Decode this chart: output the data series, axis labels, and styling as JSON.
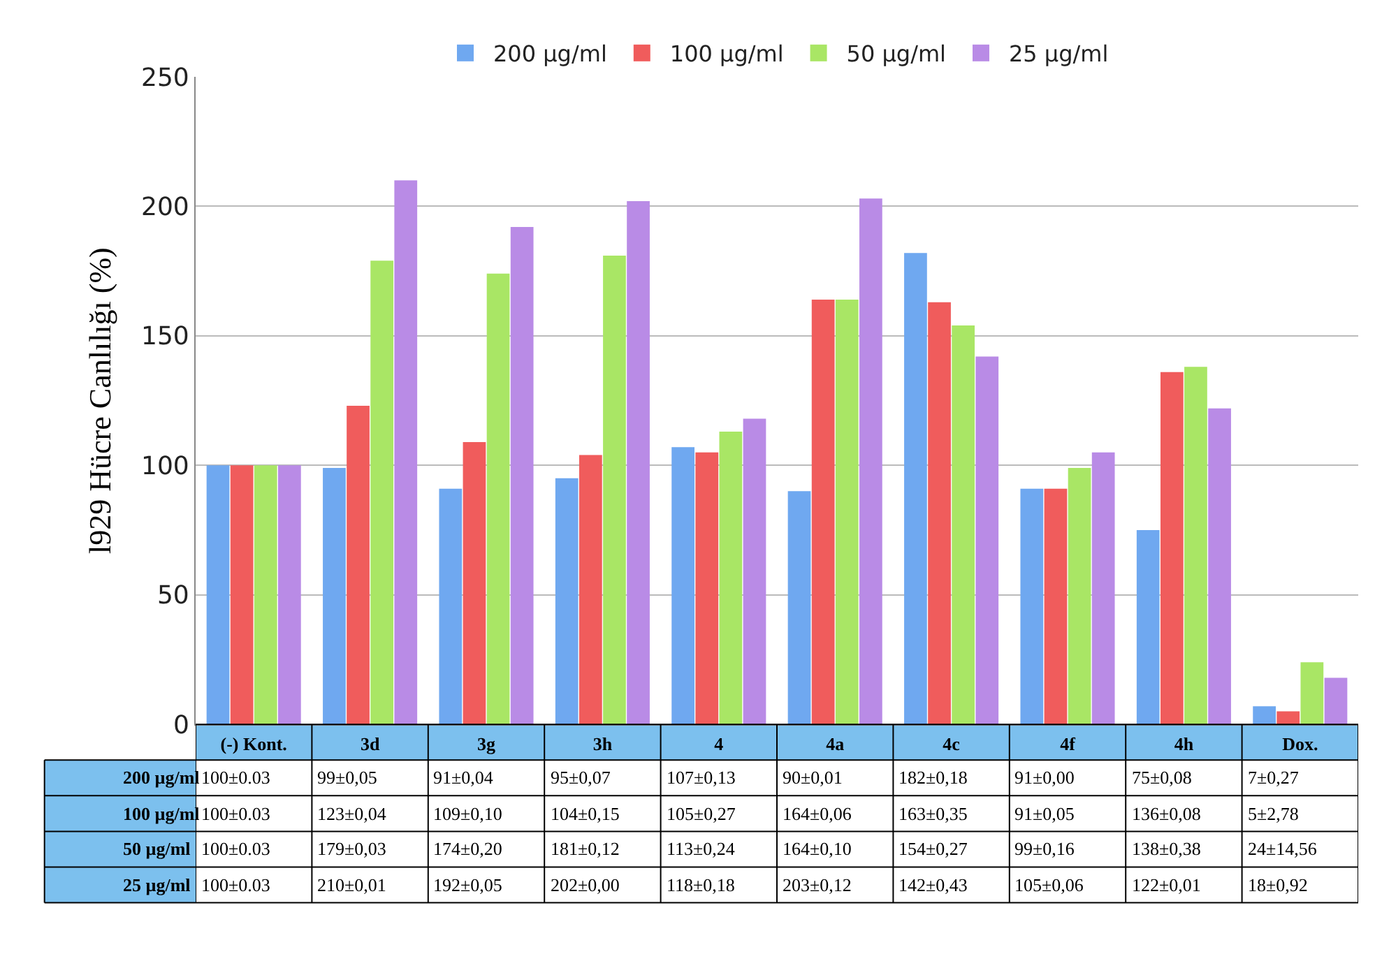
{
  "chart_data": {
    "type": "bar",
    "ylabel": "l929 Hücre Canlılığı (%)",
    "categories": [
      "(-) Kont.",
      "3d",
      "3g",
      "3h",
      "4",
      "4a",
      "4c",
      "4f",
      "4h",
      "Dox."
    ],
    "series": [
      {
        "name": "200 µg/ml",
        "color": "#6fa8f0",
        "values": [
          100,
          99,
          91,
          95,
          107,
          90,
          182,
          91,
          75,
          7
        ],
        "value_labels": [
          "100±0.03",
          "99±0,05",
          "91±0,04",
          "95±0,07",
          "107±0,13",
          "90±0,01",
          "182±0,18",
          "91±0,00",
          "75±0,08",
          "7±0,27"
        ]
      },
      {
        "name": "100 µg/ml",
        "color": "#f05c5c",
        "values": [
          100,
          123,
          109,
          104,
          105,
          164,
          163,
          91,
          136,
          5
        ],
        "value_labels": [
          "100±0.03",
          "123±0,04",
          "109±0,10",
          "104±0,15",
          "105±0,27",
          "164±0,06",
          "163±0,35",
          "91±0,05",
          "136±0,08",
          "5±2,78"
        ]
      },
      {
        "name": "50 µg/ml",
        "color": "#a9e665",
        "values": [
          100,
          179,
          174,
          181,
          113,
          164,
          154,
          99,
          138,
          24
        ],
        "value_labels": [
          "100±0.03",
          "179±0,03",
          "174±0,20",
          "181±0,12",
          "113±0,24",
          "164±0,10",
          "154±0,27",
          "99±0,16",
          "138±0,38",
          "24±14,56"
        ]
      },
      {
        "name": "25 µg/ml",
        "color": "#b98be6",
        "values": [
          100,
          210,
          192,
          202,
          118,
          203,
          142,
          105,
          122,
          18
        ],
        "value_labels": [
          "100±0.03",
          "210±0,01",
          "192±0,05",
          "202±0,00",
          "118±0,18",
          "203±0,12",
          "142±0,43",
          "105±0,06",
          "122±0,01",
          "18±0,92"
        ]
      }
    ],
    "ylim": [
      0,
      250
    ],
    "yticks": [
      0,
      50,
      100,
      150,
      200,
      250
    ],
    "grid": "y",
    "legend": "top"
  }
}
